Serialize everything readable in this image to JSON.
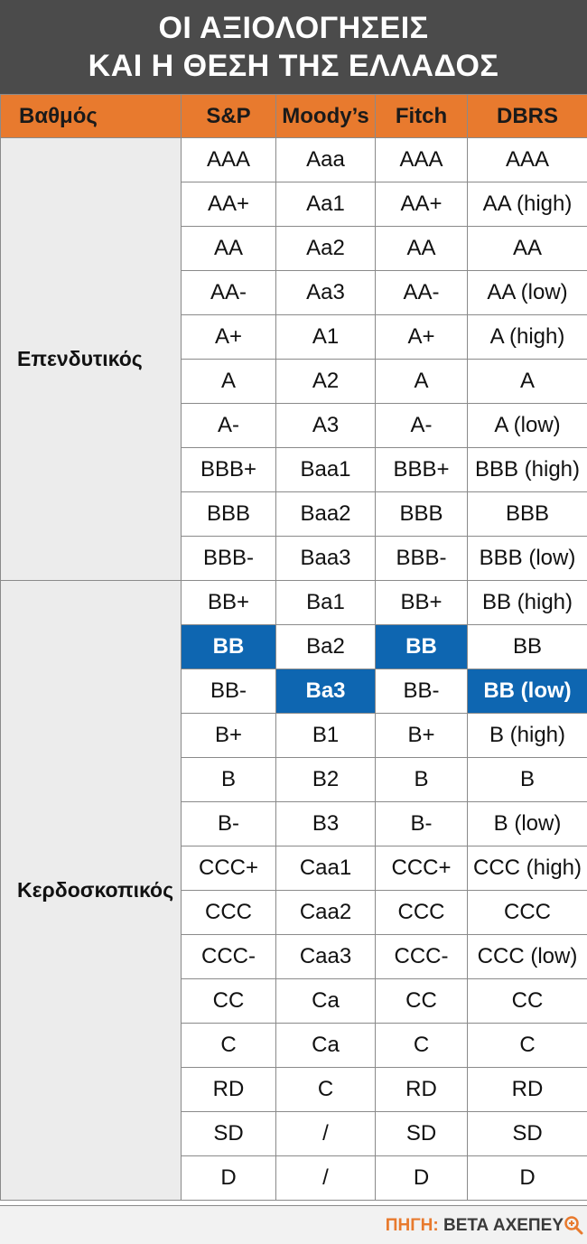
{
  "title": {
    "line1": "ΟΙ ΑΞΙΟΛΟΓΗΣΕΙΣ",
    "line2": "ΚΑΙ Η ΘΕΣΗ ΤΗΣ ΕΛΛΑΔΟΣ"
  },
  "chart_data": {
    "type": "table",
    "columns": [
      "Βαθμός",
      "S&P",
      "Moody’s",
      "Fitch",
      "DBRS"
    ],
    "groups": [
      {
        "label": "Επενδυτικός",
        "rows": [
          [
            "AAA",
            "Aaa",
            "AAA",
            "AAA"
          ],
          [
            "AA+",
            "Aa1",
            "AA+",
            "AA (high)"
          ],
          [
            "AA",
            "Aa2",
            "AA",
            "AA"
          ],
          [
            "AA-",
            "Aa3",
            "AA-",
            "AA (low)"
          ],
          [
            "A+",
            "A1",
            "A+",
            "A (high)"
          ],
          [
            "A",
            "A2",
            "A",
            "A"
          ],
          [
            "A-",
            "A3",
            "A-",
            "A (low)"
          ],
          [
            "BBB+",
            "Baa1",
            "BBB+",
            "BBB (high)"
          ],
          [
            "BBB",
            "Baa2",
            "BBB",
            "BBB"
          ],
          [
            "BBB-",
            "Baa3",
            "BBB-",
            "BBB (low)"
          ]
        ]
      },
      {
        "label": "Κερδοσκοπικός",
        "rows": [
          [
            "BB+",
            "Ba1",
            "BB+",
            "BB (high)"
          ],
          [
            "BB",
            "Ba2",
            "BB",
            "BB"
          ],
          [
            "BB-",
            "Ba3",
            "BB-",
            "BB (low)"
          ],
          [
            "B+",
            "B1",
            "B+",
            "B (high)"
          ],
          [
            "B",
            "B2",
            "B",
            "B"
          ],
          [
            "B-",
            "B3",
            "B-",
            "B (low)"
          ],
          [
            "CCC+",
            "Caa1",
            "CCC+",
            "CCC (high)"
          ],
          [
            "CCC",
            "Caa2",
            "CCC",
            "CCC"
          ],
          [
            "CCC-",
            "Caa3",
            "CCC-",
            "CCC (low)"
          ],
          [
            "CC",
            "Ca",
            "CC",
            "CC"
          ],
          [
            "C",
            "Ca",
            "C",
            "C"
          ],
          [
            "RD",
            "C",
            "RD",
            "RD"
          ],
          [
            "SD",
            "/",
            "SD",
            "SD"
          ],
          [
            "D",
            "/",
            "D",
            "D"
          ]
        ]
      }
    ],
    "greece_ratings": {
      "S&P": "BB",
      "Moody’s": "Ba3",
      "Fitch": "BB",
      "DBRS": "BB (low)"
    }
  },
  "colors": {
    "title_background": "#4b4b4b",
    "header_background": "#e87a2e",
    "highlight": "#0e66b1",
    "category_background": "#ececec"
  },
  "source": {
    "label": "ΠΗΓΗ:",
    "value": "ΒΕΤΑ ΑΧΕΠΕΥ",
    "icon": "zoom-icon"
  }
}
